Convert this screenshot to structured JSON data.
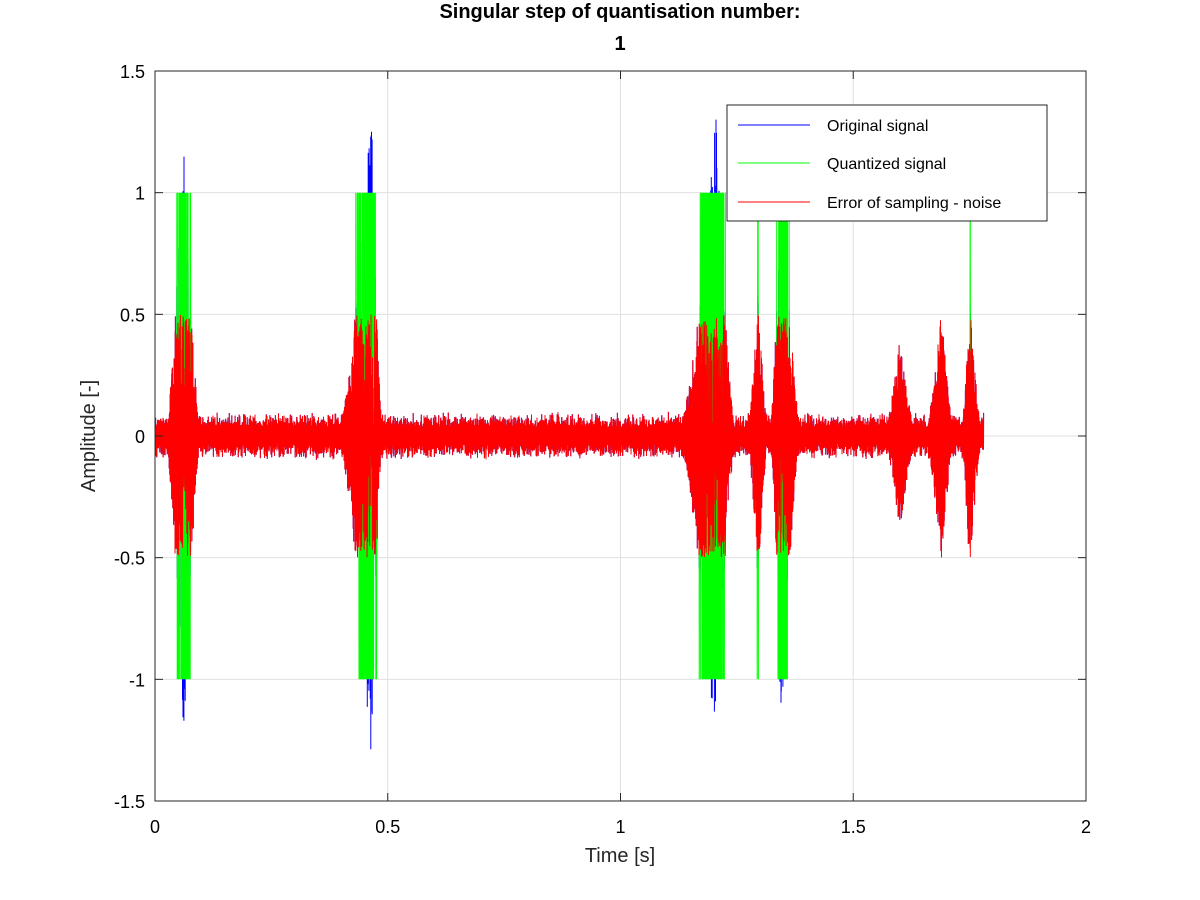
{
  "chart_data": {
    "type": "line",
    "title_line1": "Singular step of quantisation number:",
    "title_line2": "1",
    "xlabel": "Time [s]",
    "ylabel": "Amplitude [-]",
    "xlim": [
      0,
      2
    ],
    "ylim": [
      -1.5,
      1.5
    ],
    "xticks": [
      0,
      0.5,
      1,
      1.5,
      2
    ],
    "xtick_labels": [
      "0",
      "0.5",
      "1",
      "1.5",
      "2"
    ],
    "yticks": [
      -1.5,
      -1,
      -0.5,
      0,
      0.5,
      1,
      1.5
    ],
    "ytick_labels": [
      "-1.5",
      "-1",
      "-0.5",
      "0",
      "0.5",
      "1",
      "1.5"
    ],
    "grid": true,
    "legend_position": "top-right",
    "signal_end_time": 1.78,
    "quantization_step": 1,
    "background_noise_amplitude": 0.1,
    "bursts": [
      {
        "start": 0.02,
        "center": 0.062,
        "end": 0.1,
        "peak": 1.27
      },
      {
        "start": 0.39,
        "center": 0.465,
        "end": 0.49,
        "peak": 1.37
      },
      {
        "start": 1.12,
        "center": 1.205,
        "end": 1.25,
        "peak": 1.32
      },
      {
        "start": 1.27,
        "center": 1.295,
        "end": 1.32,
        "peak": 0.62
      },
      {
        "start": 1.32,
        "center": 1.345,
        "end": 1.39,
        "peak": 1.22
      },
      {
        "start": 1.56,
        "center": 1.6,
        "end": 1.64,
        "peak": 0.4
      },
      {
        "start": 1.65,
        "center": 1.69,
        "end": 1.72,
        "peak": 0.55
      },
      {
        "start": 1.73,
        "center": 1.75,
        "end": 1.78,
        "peak": 0.58
      }
    ],
    "series": [
      {
        "name": "Original signal",
        "color": "#0000ff"
      },
      {
        "name": "Quantized signal",
        "color": "#00ff00"
      },
      {
        "name": "Error of sampling - noise",
        "color": "#ff0000"
      }
    ]
  }
}
